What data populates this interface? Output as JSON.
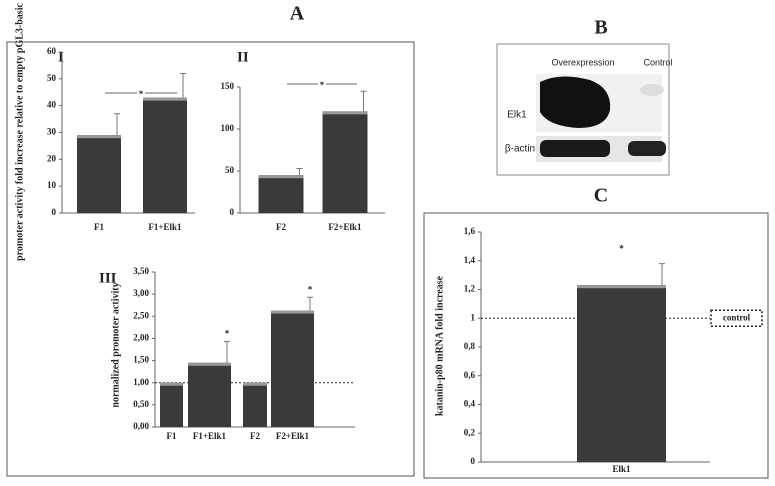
{
  "panels": {
    "a": "A",
    "b": "B",
    "c": "C"
  },
  "blot": {
    "columns": [
      "Overexpression",
      "Control"
    ],
    "rows": [
      "Elk1",
      "β-actin"
    ]
  },
  "chart_data": [
    {
      "type": "bar",
      "title": "I",
      "y_label": "promoter activity fold increase relative to empty pGL3-basic",
      "categories": [
        "F1",
        "F1+Elk1"
      ],
      "values": [
        29,
        43
      ],
      "errors": [
        8,
        9
      ],
      "color": "#3a3a3a",
      "ylim": [
        0,
        60
      ],
      "yticks": [
        0,
        10,
        20,
        30,
        40,
        50,
        60
      ],
      "annotations": [
        {
          "text": "*",
          "between": [
            0,
            1
          ]
        }
      ]
    },
    {
      "type": "bar",
      "title": "II",
      "categories": [
        "F2",
        "F2+Elk1"
      ],
      "values": [
        45,
        121
      ],
      "errors": [
        8,
        24
      ],
      "color": "#3a3a3a",
      "ylim": [
        0,
        150
      ],
      "yticks": [
        0,
        50,
        100,
        150
      ],
      "annotations": [
        {
          "text": "*",
          "between": [
            0,
            1
          ]
        }
      ]
    },
    {
      "type": "bar",
      "title": "III",
      "y_label": "normalized promoter activity",
      "categories": [
        "F1",
        "F1+Elk1",
        "F2",
        "F2+Elk1"
      ],
      "values": [
        1.0,
        1.45,
        1.0,
        2.63
      ],
      "errors": [
        0,
        0.48,
        0,
        0.3
      ],
      "color": "#3a3a3a",
      "ylim": [
        0,
        3.5
      ],
      "yticks": [
        {
          "value": 0,
          "label": "0,00"
        },
        {
          "value": 0.5,
          "label": "0,50"
        },
        {
          "value": 1,
          "label": "1,00"
        },
        {
          "value": 1.5,
          "label": "1,50"
        },
        {
          "value": 2,
          "label": "2,00"
        },
        {
          "value": 2.5,
          "label": "2,50"
        },
        {
          "value": 3,
          "label": "3,00"
        },
        {
          "value": 3.5,
          "label": "3,50"
        }
      ],
      "reference_line": {
        "value": 1
      },
      "annotations": [
        {
          "text": "*",
          "category": 1
        },
        {
          "text": "*",
          "category": 3
        }
      ]
    },
    {
      "type": "bar",
      "y_label": "katanin-p80 mRNA fold increase",
      "categories": [
        "Elk1"
      ],
      "values": [
        1.23
      ],
      "errors": [
        0.15
      ],
      "color": "#3a3a3a",
      "ylim": [
        0,
        1.6
      ],
      "yticks": [
        0,
        {
          "value": 0.2,
          "label": "0,2"
        },
        {
          "value": 0.4,
          "label": "0,4"
        },
        {
          "value": 0.6,
          "label": "0,6"
        },
        {
          "value": 0.8,
          "label": "0,8"
        },
        1,
        {
          "value": 1.2,
          "label": "1,2"
        },
        {
          "value": 1.4,
          "label": "1,4"
        },
        {
          "value": 1.6,
          "label": "1,6"
        }
      ],
      "reference_line": {
        "value": 1,
        "label": "control"
      },
      "annotations": [
        {
          "text": "*",
          "category": 0
        }
      ]
    }
  ]
}
